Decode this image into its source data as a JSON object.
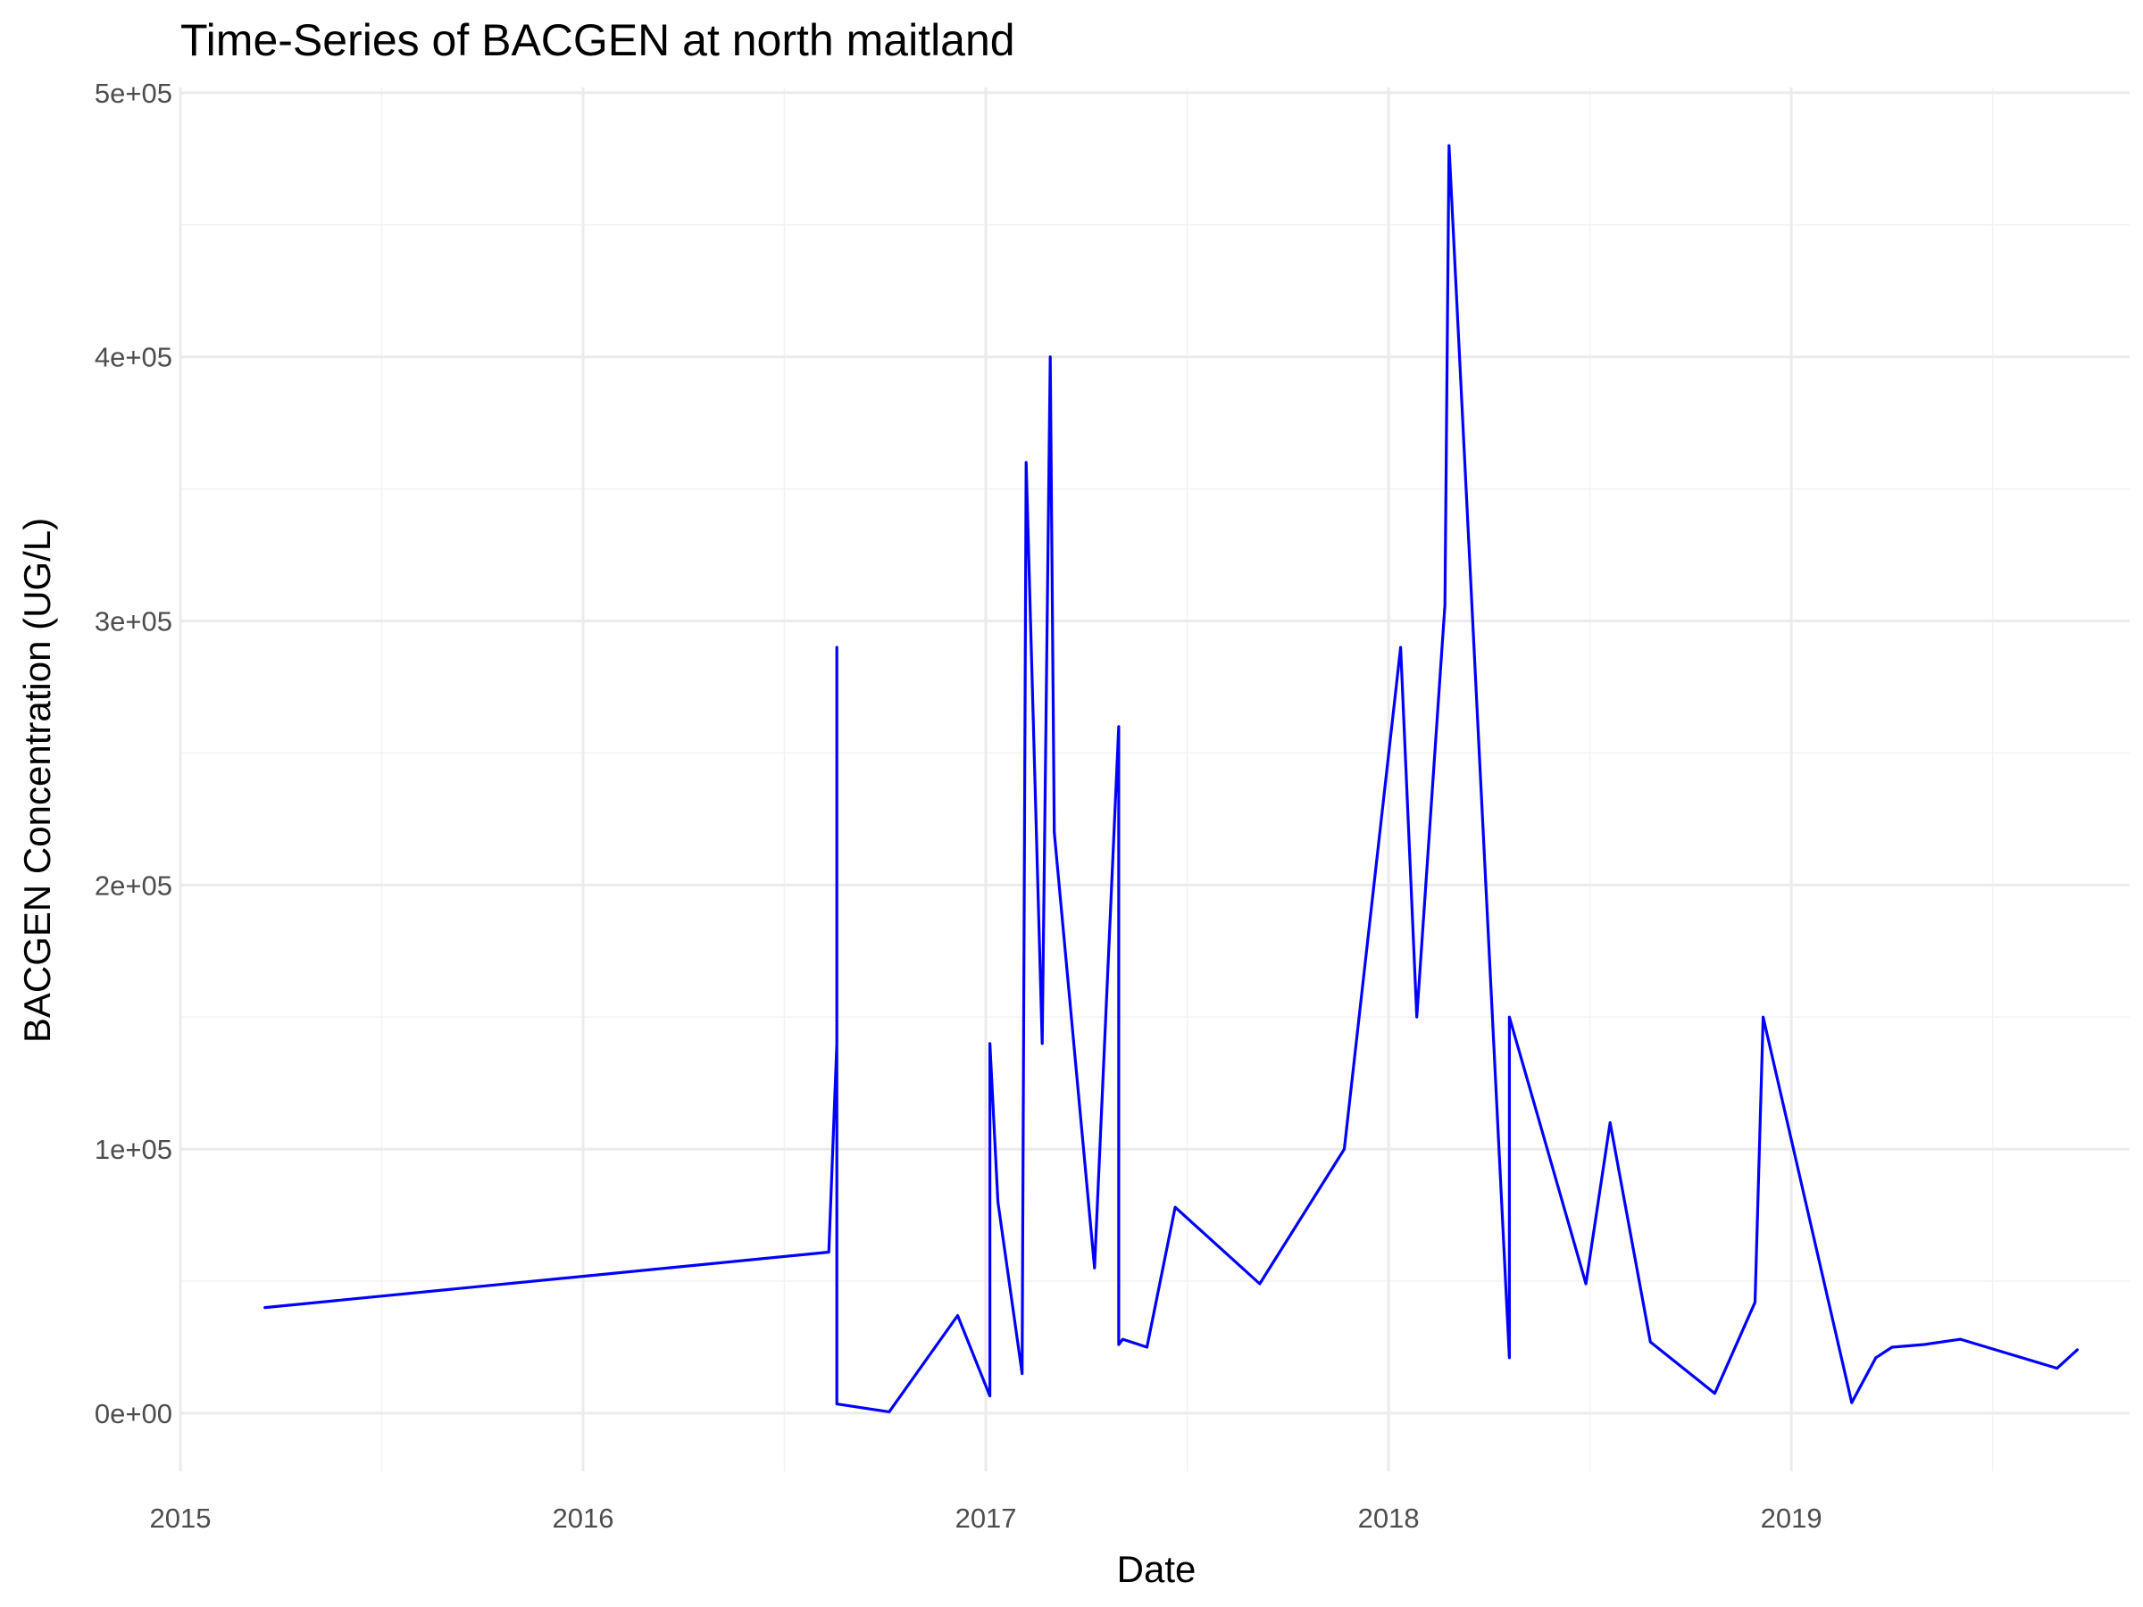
{
  "chart_data": {
    "type": "line",
    "title": "Time-Series of BACGEN at north maitland",
    "xlabel": "Date",
    "ylabel": "BACGEN Concentration (UG/L)",
    "x_ticks": [
      "2015",
      "2016",
      "2017",
      "2018",
      "2019"
    ],
    "y_ticks": [
      "0e+00",
      "1e+05",
      "2e+05",
      "3e+05",
      "4e+05",
      "5e+05"
    ],
    "xlim": [
      2015.0,
      2019.84
    ],
    "ylim": [
      -22000,
      502000
    ],
    "grid": true,
    "line_color": "#0000ff",
    "series": [
      {
        "x": [
          2015.21,
          2016.61,
          2016.63,
          2016.63,
          2016.63,
          2016.76,
          2016.93,
          2017.01,
          2017.01,
          2017.03,
          2017.09,
          2017.1,
          2017.14,
          2017.16,
          2017.17,
          2017.27,
          2017.33,
          2017.33,
          2017.34,
          2017.4,
          2017.47,
          2017.68,
          2017.89,
          2018.03,
          2018.07,
          2018.14,
          2018.15,
          2018.3,
          2018.3,
          2018.49,
          2018.55,
          2018.65,
          2018.81,
          2018.91,
          2018.93,
          2019.15,
          2019.21,
          2019.25,
          2019.33,
          2019.42,
          2019.66,
          2019.71
        ],
        "y": [
          40000,
          61000,
          140000,
          290000,
          3500,
          500,
          37000,
          6500,
          140000,
          80000,
          15000,
          360000,
          140000,
          400000,
          220000,
          55000,
          260000,
          26000,
          28000,
          25000,
          78000,
          49000,
          100000,
          290000,
          150000,
          306000,
          480000,
          21000,
          150000,
          49000,
          110000,
          27000,
          7500,
          42000,
          150000,
          4000,
          21000,
          25000,
          26000,
          28000,
          17000,
          24000
        ]
      }
    ]
  }
}
